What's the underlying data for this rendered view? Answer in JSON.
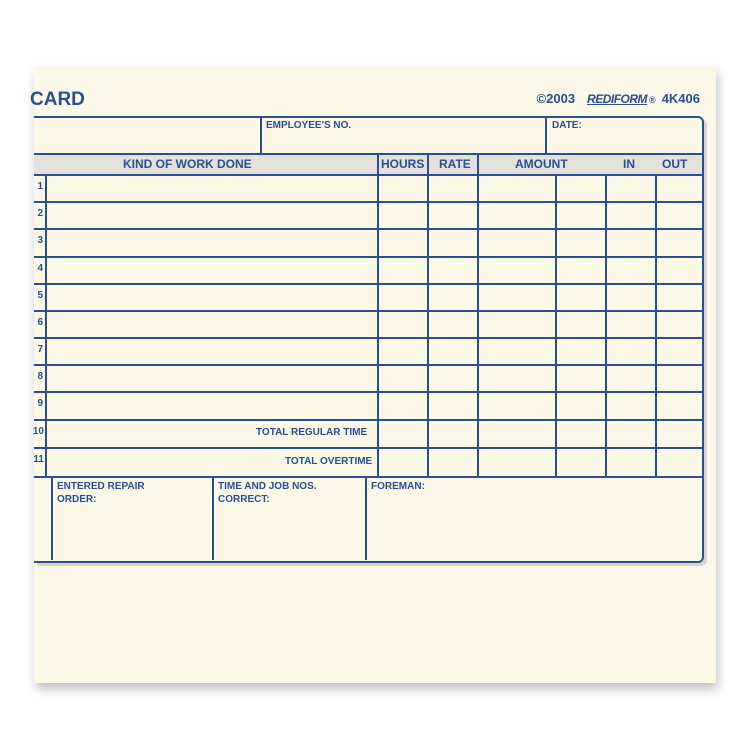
{
  "header": {
    "title": "CARD",
    "copyright": "©2003",
    "brand": "REDIFORM",
    "registered": "®",
    "form_number": "4K406"
  },
  "top_fields": {
    "employee_no": "EMPLOYEE'S NO.",
    "date": "DATE:"
  },
  "columns": {
    "kind": "KIND OF WORK DONE",
    "hours": "HOURS",
    "rate": "RATE",
    "amount": "AMOUNT",
    "in": "IN",
    "out": "OUT"
  },
  "row_numbers": [
    "1",
    "2",
    "3",
    "4",
    "5",
    "6",
    "7",
    "8",
    "9",
    "10",
    "11"
  ],
  "totals": {
    "regular": "TOTAL REGULAR TIME",
    "overtime": "TOTAL OVERTIME"
  },
  "bottom": {
    "entered_repair": "ENTERED REPAIR",
    "order": "ORDER:",
    "time_job": "TIME AND JOB NOS.",
    "correct": "CORRECT:",
    "foreman": "FOREMAN:"
  },
  "colors": {
    "ink": "#2b4f93",
    "paper": "#fbf8e7",
    "band": "#e3e2da"
  }
}
